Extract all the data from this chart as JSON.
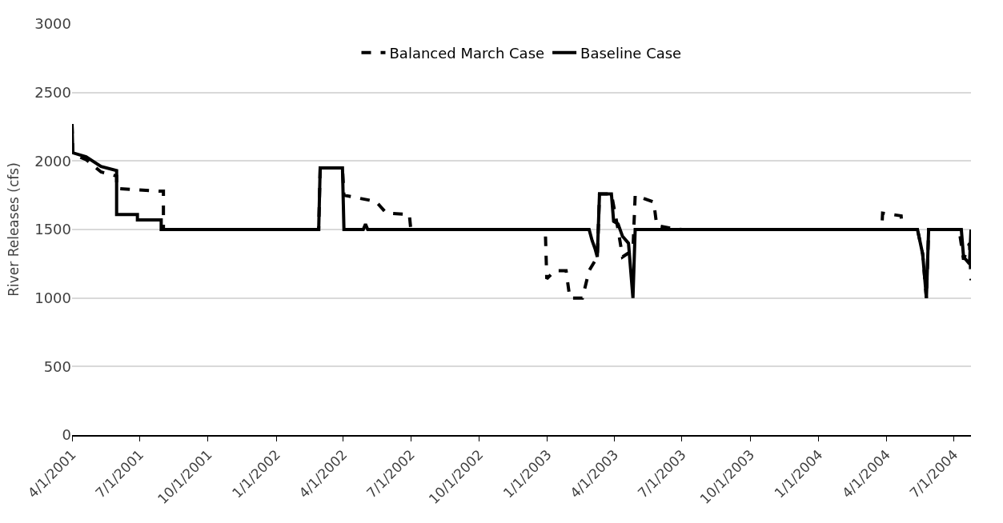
{
  "chart_data": {
    "type": "line",
    "ylabel": "River Releases (cfs)",
    "xlim": [
      "2001-04-01",
      "2004-07-24"
    ],
    "xticks": [
      {
        "value": "2001-04-01",
        "label": "4/1/2001"
      },
      {
        "value": "2001-07-01",
        "label": "7/1/2001"
      },
      {
        "value": "2001-10-01",
        "label": "10/1/2001"
      },
      {
        "value": "2002-01-01",
        "label": "1/1/2002"
      },
      {
        "value": "2002-04-01",
        "label": "4/1/2002"
      },
      {
        "value": "2002-07-01",
        "label": "7/1/2002"
      },
      {
        "value": "2002-10-01",
        "label": "10/1/2002"
      },
      {
        "value": "2003-01-01",
        "label": "1/1/2003"
      },
      {
        "value": "2003-04-01",
        "label": "4/1/2003"
      },
      {
        "value": "2003-07-01",
        "label": "7/1/2003"
      },
      {
        "value": "2003-10-01",
        "label": "10/1/2003"
      },
      {
        "value": "2004-01-01",
        "label": "1/1/2004"
      },
      {
        "value": "2004-04-01",
        "label": "4/1/2004"
      },
      {
        "value": "2004-07-01",
        "label": "7/1/2004"
      }
    ],
    "ylim": [
      0,
      3000
    ],
    "yticks": [
      0,
      500,
      1000,
      1500,
      2000,
      2500,
      3000
    ],
    "grid": "y",
    "legend": "top",
    "series": [
      {
        "name": "Balanced March Case",
        "color": "#000000",
        "line_style": "dashed",
        "x": [
          "2001-04-01",
          "2001-04-02",
          "2001-04-20",
          "2001-05-10",
          "2001-05-31",
          "2001-05-31",
          "2001-07-27",
          "2001-08-02",
          "2001-08-02",
          "2002-02-27",
          "2002-03-01",
          "2002-03-31",
          "2002-04-02",
          "2002-05-15",
          "2002-05-29",
          "2002-06-29",
          "2002-07-01",
          "2002-12-29",
          "2002-12-31",
          "2003-01-11",
          "2003-01-26",
          "2003-01-31",
          "2003-02-17",
          "2003-02-26",
          "2003-03-09",
          "2003-03-12",
          "2003-03-28",
          "2003-04-06",
          "2003-04-12",
          "2003-04-26",
          "2003-04-29",
          "2003-05-24",
          "2003-05-28",
          "2003-06-15",
          "2003-07-01",
          "2004-03-26",
          "2004-03-27",
          "2004-04-21",
          "2004-04-22",
          "2004-05-13",
          "2004-05-20",
          "2004-05-25",
          "2004-05-28",
          "2004-07-08",
          "2004-07-14",
          "2004-07-22",
          "2004-07-24"
        ],
        "values": [
          2270,
          2050,
          2010,
          1920,
          1890,
          1800,
          1780,
          1780,
          1500,
          1500,
          1950,
          1950,
          1750,
          1705,
          1620,
          1610,
          1500,
          1500,
          1140,
          1200,
          1200,
          1000,
          1000,
          1200,
          1300,
          1760,
          1760,
          1500,
          1300,
          1350,
          1750,
          1700,
          1530,
          1510,
          1500,
          1500,
          1620,
          1600,
          1500,
          1500,
          1320,
          1000,
          1500,
          1500,
          1280,
          1400,
          1130
        ]
      },
      {
        "name": "Baseline Case",
        "color": "#000000",
        "line_style": "solid",
        "x": [
          "2001-04-01",
          "2001-04-02",
          "2001-04-20",
          "2001-05-10",
          "2001-05-31",
          "2001-05-31",
          "2001-06-28",
          "2001-06-28",
          "2001-07-30",
          "2001-07-30",
          "2002-02-27",
          "2002-03-01",
          "2002-03-31",
          "2002-04-02",
          "2002-04-28",
          "2002-05-01",
          "2002-05-04",
          "2003-02-26",
          "2003-03-02",
          "2003-03-06",
          "2003-03-09",
          "2003-03-12",
          "2003-03-28",
          "2003-03-31",
          "2003-04-06",
          "2003-04-12",
          "2003-04-20",
          "2003-04-26",
          "2003-04-29",
          "2004-05-13",
          "2004-05-20",
          "2004-05-25",
          "2004-05-28",
          "2004-07-11",
          "2004-07-14",
          "2004-07-22",
          "2004-07-24"
        ],
        "values": [
          2270,
          2060,
          2030,
          1960,
          1930,
          1610,
          1610,
          1570,
          1570,
          1500,
          1500,
          1950,
          1950,
          1500,
          1500,
          1540,
          1500,
          1500,
          1420,
          1360,
          1300,
          1760,
          1760,
          1560,
          1540,
          1450,
          1400,
          1000,
          1500,
          1500,
          1320,
          1000,
          1500,
          1500,
          1300,
          1250,
          1500
        ]
      }
    ]
  }
}
